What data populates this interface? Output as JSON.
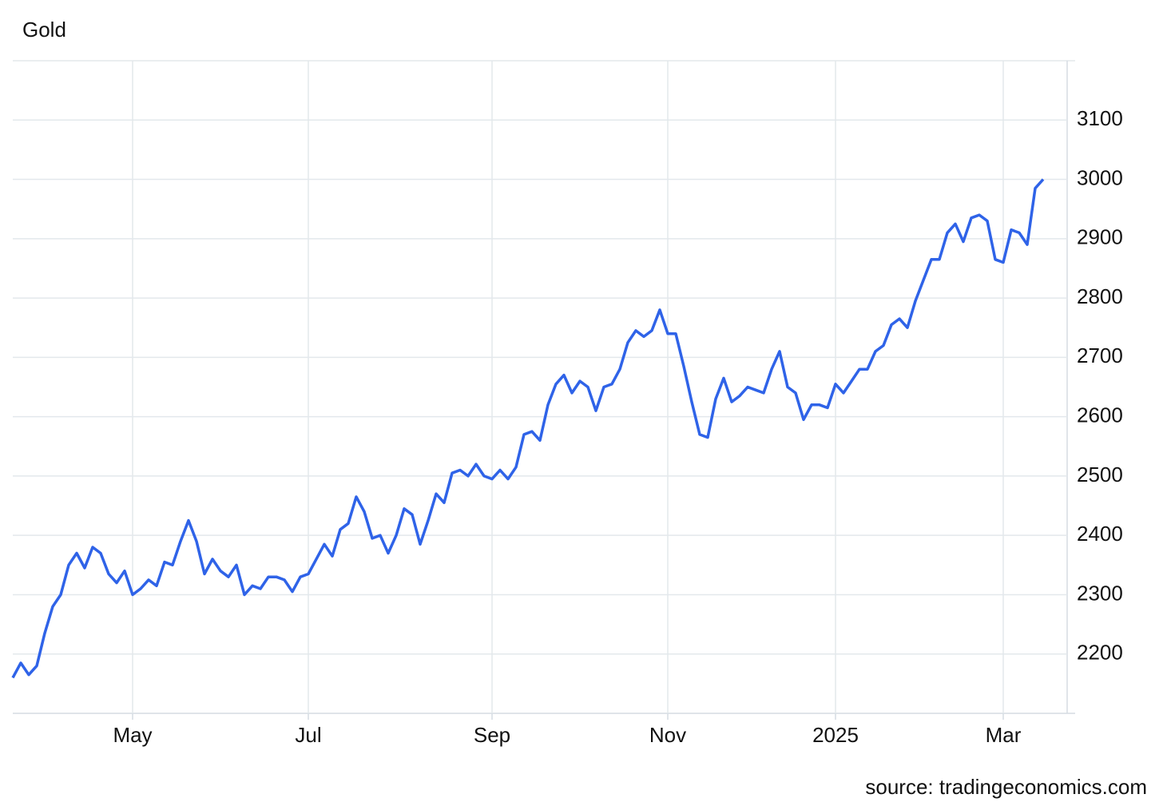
{
  "chart_data": {
    "type": "line",
    "title": "Gold",
    "source": "source: tradingeconomics.com",
    "categories": [
      null,
      null,
      null,
      null,
      null,
      null,
      null,
      null,
      null,
      null,
      null,
      null,
      null,
      null,
      null,
      "May",
      null,
      null,
      null,
      null,
      null,
      null,
      null,
      null,
      null,
      null,
      null,
      null,
      null,
      null,
      null,
      null,
      null,
      null,
      null,
      null,
      null,
      "Jul",
      null,
      null,
      null,
      null,
      null,
      null,
      null,
      null,
      null,
      null,
      null,
      null,
      null,
      null,
      null,
      null,
      null,
      null,
      null,
      null,
      null,
      null,
      "Sep",
      null,
      null,
      null,
      null,
      null,
      null,
      null,
      null,
      null,
      null,
      null,
      null,
      null,
      null,
      null,
      null,
      null,
      null,
      null,
      null,
      null,
      "Nov",
      null,
      null,
      null,
      null,
      null,
      null,
      null,
      null,
      null,
      null,
      null,
      null,
      null,
      null,
      null,
      null,
      null,
      null,
      null,
      null,
      "2025",
      null,
      null,
      null,
      null,
      null,
      null,
      null,
      null,
      null,
      null,
      null,
      null,
      null,
      null,
      null,
      null,
      null,
      null,
      null,
      null,
      "Mar",
      null,
      null,
      null,
      null,
      null
    ],
    "series": [
      {
        "name": "Gold",
        "color": "#2f63e8",
        "values": [
          2160,
          2185,
          2165,
          2180,
          2235,
          2280,
          2300,
          2350,
          2370,
          2345,
          2380,
          2370,
          2335,
          2320,
          2340,
          2300,
          2310,
          2325,
          2315,
          2355,
          2350,
          2390,
          2425,
          2390,
          2335,
          2360,
          2340,
          2330,
          2350,
          2300,
          2315,
          2310,
          2330,
          2330,
          2325,
          2305,
          2330,
          2335,
          2360,
          2385,
          2365,
          2410,
          2420,
          2465,
          2440,
          2395,
          2400,
          2370,
          2400,
          2445,
          2435,
          2385,
          2425,
          2470,
          2455,
          2505,
          2510,
          2500,
          2520,
          2500,
          2495,
          2510,
          2495,
          2515,
          2570,
          2575,
          2560,
          2620,
          2655,
          2670,
          2640,
          2660,
          2650,
          2610,
          2650,
          2655,
          2680,
          2725,
          2745,
          2735,
          2745,
          2780,
          2740,
          2740,
          2685,
          2625,
          2570,
          2565,
          2630,
          2665,
          2625,
          2635,
          2650,
          2645,
          2640,
          2680,
          2710,
          2650,
          2640,
          2595,
          2620,
          2620,
          2615,
          2655,
          2640,
          2660,
          2680,
          2680,
          2710,
          2720,
          2755,
          2765,
          2750,
          2795,
          2830,
          2865,
          2865,
          2910,
          2925,
          2895,
          2935,
          2940,
          2930,
          2865,
          2860,
          2915,
          2910,
          2890,
          2985,
          3000
        ]
      }
    ],
    "ylim": [
      2100,
      3200
    ],
    "yticks": [
      2200,
      2300,
      2400,
      2500,
      2600,
      2700,
      2800,
      2900,
      3000,
      3100
    ],
    "grid": true
  }
}
